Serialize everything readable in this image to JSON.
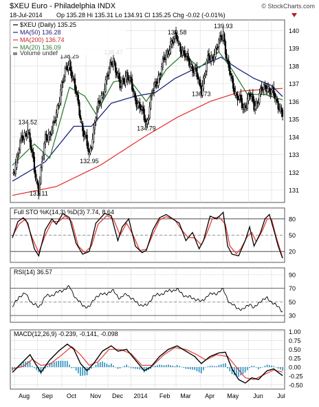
{
  "header": {
    "symbol_line": "$XEU Euro - Philadelphia INDX",
    "watermark": "© StockCharts.com",
    "date": "18-Jul-2014",
    "quote": "Op 135.28  Hi 135.31  Lo 134.91  Cl 135.25  Chg -0.02 (-0.01%)"
  },
  "legend": {
    "price": "$XEU (Daily) 135.25",
    "ma50": "MA(50) 136.28",
    "ma200": "MA(200) 136.74",
    "ma20": "MA(20) 136.09",
    "volume": "Volume undef"
  },
  "colors": {
    "price": "#000000",
    "ma50": "#1a237e",
    "ma200": "#e53935",
    "ma20": "#2e7d32",
    "sto_k": "#000000",
    "sto_d": "#e53935",
    "macd_hist": "#2a8fbd",
    "grid": "#d9d9d9",
    "panel_border": "#555555"
  },
  "x_axis": {
    "labels": [
      "Aug",
      "Sep",
      "Oct",
      "Nov",
      "Dec",
      "2014",
      "Feb",
      "Mar",
      "Apr",
      "May",
      "Jun",
      "Jul"
    ],
    "label_index": [
      2,
      23,
      45,
      67,
      87,
      108,
      130,
      149,
      171,
      192,
      215,
      236
    ]
  },
  "chart_data": [
    {
      "type": "line",
      "title": "$XEU (Daily)",
      "ylim": [
        130.3,
        140.6
      ],
      "y_ticks": [
        131,
        132,
        133,
        134,
        135,
        136,
        137,
        138,
        139,
        140
      ],
      "anchors": [
        [
          0,
          131.7
        ],
        [
          6,
          133.4
        ],
        [
          14,
          134.52
        ],
        [
          20,
          132.1
        ],
        [
          24,
          131.11
        ],
        [
          30,
          133.9
        ],
        [
          38,
          134.6
        ],
        [
          45,
          137.0
        ],
        [
          52,
          138.25
        ],
        [
          58,
          136.4
        ],
        [
          64,
          134.5
        ],
        [
          70,
          132.95
        ],
        [
          76,
          135.2
        ],
        [
          84,
          136.9
        ],
        [
          92,
          138.47
        ],
        [
          98,
          136.8
        ],
        [
          104,
          137.6
        ],
        [
          112,
          136.2
        ],
        [
          118,
          135.4
        ],
        [
          122,
          134.79
        ],
        [
          128,
          136.6
        ],
        [
          136,
          137.9
        ],
        [
          144,
          139.3
        ],
        [
          150,
          139.58
        ],
        [
          156,
          138.6
        ],
        [
          162,
          138.2
        ],
        [
          168,
          137.4
        ],
        [
          172,
          136.73
        ],
        [
          178,
          138.3
        ],
        [
          186,
          138.9
        ],
        [
          192,
          139.93
        ],
        [
          196,
          138.0
        ],
        [
          200,
          137.1
        ],
        [
          204,
          136.4
        ],
        [
          210,
          135.6
        ],
        [
          216,
          136.4
        ],
        [
          220,
          135.7
        ],
        [
          226,
          136.5
        ],
        [
          232,
          136.9
        ],
        [
          238,
          136.3
        ],
        [
          242,
          135.9
        ],
        [
          246,
          135.25
        ]
      ],
      "ma20_anchors": [
        [
          0,
          132.4
        ],
        [
          20,
          133.6
        ],
        [
          34,
          132.8
        ],
        [
          52,
          136.8
        ],
        [
          66,
          136.3
        ],
        [
          76,
          135.3
        ],
        [
          92,
          137.1
        ],
        [
          106,
          137.3
        ],
        [
          122,
          136.0
        ],
        [
          140,
          137.8
        ],
        [
          156,
          138.7
        ],
        [
          170,
          137.9
        ],
        [
          188,
          138.8
        ],
        [
          200,
          137.8
        ],
        [
          214,
          136.4
        ],
        [
          230,
          136.4
        ],
        [
          246,
          136.09
        ]
      ],
      "ma50_anchors": [
        [
          0,
          131.5
        ],
        [
          30,
          132.6
        ],
        [
          56,
          134.6
        ],
        [
          72,
          134.6
        ],
        [
          90,
          135.9
        ],
        [
          112,
          136.3
        ],
        [
          130,
          136.5
        ],
        [
          148,
          137.3
        ],
        [
          168,
          137.9
        ],
        [
          190,
          138.5
        ],
        [
          204,
          137.9
        ],
        [
          220,
          137.3
        ],
        [
          236,
          136.9
        ],
        [
          246,
          136.28
        ]
      ],
      "ma200_anchors": [
        [
          0,
          130.7
        ],
        [
          40,
          131.2
        ],
        [
          80,
          132.4
        ],
        [
          120,
          134.0
        ],
        [
          150,
          135.1
        ],
        [
          180,
          136.0
        ],
        [
          210,
          136.6
        ],
        [
          246,
          136.74
        ]
      ],
      "annotations": [
        {
          "label": "134.52",
          "x": 14,
          "y": 134.52,
          "pos": "above"
        },
        {
          "label": "131.11",
          "x": 24,
          "y": 131.11,
          "pos": "below"
        },
        {
          "label": "138.25",
          "x": 52,
          "y": 138.25,
          "pos": "above"
        },
        {
          "label": "132.95",
          "x": 70,
          "y": 132.95,
          "pos": "below"
        },
        {
          "label": "138.47",
          "x": 92,
          "y": 138.47,
          "pos": "above"
        },
        {
          "label": "134.79",
          "x": 122,
          "y": 134.79,
          "pos": "below"
        },
        {
          "label": "139.58",
          "x": 150,
          "y": 139.58,
          "pos": "above"
        },
        {
          "label": "136.73",
          "x": 172,
          "y": 136.73,
          "pos": "below"
        },
        {
          "label": "139.93",
          "x": 192,
          "y": 139.93,
          "pos": "above"
        }
      ]
    },
    {
      "type": "line",
      "title": "Full STO %K(14,3) %D(3) 7.74, 8.64",
      "ylim": [
        0,
        100
      ],
      "y_ticks": [
        20,
        50,
        80
      ],
      "k_anchors": [
        [
          0,
          45
        ],
        [
          5,
          75
        ],
        [
          10,
          82
        ],
        [
          14,
          72
        ],
        [
          20,
          25
        ],
        [
          24,
          12
        ],
        [
          30,
          60
        ],
        [
          36,
          80
        ],
        [
          40,
          70
        ],
        [
          46,
          90
        ],
        [
          52,
          82
        ],
        [
          58,
          35
        ],
        [
          64,
          15
        ],
        [
          70,
          20
        ],
        [
          76,
          72
        ],
        [
          84,
          90
        ],
        [
          90,
          86
        ],
        [
          96,
          40
        ],
        [
          100,
          65
        ],
        [
          106,
          80
        ],
        [
          112,
          30
        ],
        [
          118,
          18
        ],
        [
          122,
          22
        ],
        [
          128,
          60
        ],
        [
          134,
          82
        ],
        [
          140,
          88
        ],
        [
          146,
          80
        ],
        [
          152,
          72
        ],
        [
          158,
          40
        ],
        [
          164,
          55
        ],
        [
          170,
          25
        ],
        [
          174,
          40
        ],
        [
          180,
          85
        ],
        [
          186,
          80
        ],
        [
          192,
          92
        ],
        [
          196,
          30
        ],
        [
          200,
          15
        ],
        [
          206,
          12
        ],
        [
          212,
          40
        ],
        [
          216,
          65
        ],
        [
          220,
          30
        ],
        [
          226,
          55
        ],
        [
          230,
          80
        ],
        [
          234,
          88
        ],
        [
          238,
          60
        ],
        [
          242,
          30
        ],
        [
          246,
          7.74
        ]
      ],
      "d_anchors": [
        [
          0,
          48
        ],
        [
          6,
          70
        ],
        [
          12,
          80
        ],
        [
          18,
          45
        ],
        [
          24,
          18
        ],
        [
          30,
          50
        ],
        [
          36,
          75
        ],
        [
          42,
          75
        ],
        [
          48,
          85
        ],
        [
          54,
          75
        ],
        [
          60,
          30
        ],
        [
          66,
          18
        ],
        [
          72,
          30
        ],
        [
          78,
          70
        ],
        [
          86,
          86
        ],
        [
          92,
          80
        ],
        [
          98,
          50
        ],
        [
          104,
          72
        ],
        [
          110,
          50
        ],
        [
          116,
          22
        ],
        [
          122,
          24
        ],
        [
          128,
          52
        ],
        [
          134,
          78
        ],
        [
          140,
          84
        ],
        [
          148,
          78
        ],
        [
          154,
          60
        ],
        [
          160,
          46
        ],
        [
          166,
          45
        ],
        [
          172,
          32
        ],
        [
          176,
          48
        ],
        [
          182,
          80
        ],
        [
          188,
          84
        ],
        [
          194,
          70
        ],
        [
          198,
          30
        ],
        [
          204,
          16
        ],
        [
          208,
          25
        ],
        [
          214,
          48
        ],
        [
          218,
          55
        ],
        [
          222,
          38
        ],
        [
          228,
          60
        ],
        [
          232,
          80
        ],
        [
          236,
          80
        ],
        [
          240,
          48
        ],
        [
          244,
          22
        ],
        [
          246,
          8.64
        ]
      ]
    },
    {
      "type": "line",
      "title": "RSI(14) 36.57",
      "ylim": [
        20,
        100
      ],
      "y_ticks": [
        30,
        50,
        70,
        90
      ],
      "rsi_anchors": [
        [
          0,
          42
        ],
        [
          6,
          58
        ],
        [
          12,
          62
        ],
        [
          18,
          48
        ],
        [
          24,
          42
        ],
        [
          30,
          58
        ],
        [
          36,
          60
        ],
        [
          44,
          66
        ],
        [
          52,
          72
        ],
        [
          58,
          55
        ],
        [
          64,
          45
        ],
        [
          70,
          42
        ],
        [
          76,
          58
        ],
        [
          84,
          62
        ],
        [
          92,
          66
        ],
        [
          98,
          55
        ],
        [
          104,
          62
        ],
        [
          112,
          50
        ],
        [
          118,
          45
        ],
        [
          122,
          44
        ],
        [
          128,
          58
        ],
        [
          136,
          62
        ],
        [
          144,
          67
        ],
        [
          150,
          68
        ],
        [
          158,
          58
        ],
        [
          166,
          55
        ],
        [
          172,
          50
        ],
        [
          178,
          60
        ],
        [
          186,
          63
        ],
        [
          192,
          68
        ],
        [
          198,
          48
        ],
        [
          204,
          42
        ],
        [
          210,
          38
        ],
        [
          216,
          48
        ],
        [
          220,
          40
        ],
        [
          226,
          52
        ],
        [
          232,
          55
        ],
        [
          238,
          48
        ],
        [
          242,
          42
        ],
        [
          246,
          36.57
        ]
      ]
    },
    {
      "type": "line",
      "title": "MACD(12,26,9) -0.239, -0.141, -0.098",
      "ylim": [
        -0.62,
        1.05
      ],
      "y_ticks": [
        -0.5,
        -0.25,
        0.0,
        0.25,
        0.5,
        0.75,
        1.0
      ],
      "macd_anchors": [
        [
          0,
          -0.15
        ],
        [
          8,
          0.1
        ],
        [
          16,
          0.35
        ],
        [
          22,
          0.05
        ],
        [
          26,
          -0.15
        ],
        [
          34,
          0.2
        ],
        [
          42,
          0.45
        ],
        [
          50,
          0.65
        ],
        [
          56,
          0.5
        ],
        [
          62,
          0.1
        ],
        [
          68,
          -0.1
        ],
        [
          74,
          0.1
        ],
        [
          82,
          0.45
        ],
        [
          90,
          0.6
        ],
        [
          96,
          0.45
        ],
        [
          104,
          0.5
        ],
        [
          112,
          0.2
        ],
        [
          120,
          -0.1
        ],
        [
          126,
          0.0
        ],
        [
          134,
          0.3
        ],
        [
          142,
          0.5
        ],
        [
          150,
          0.6
        ],
        [
          158,
          0.45
        ],
        [
          166,
          0.3
        ],
        [
          172,
          0.1
        ],
        [
          180,
          0.3
        ],
        [
          188,
          0.4
        ],
        [
          194,
          0.42
        ],
        [
          200,
          -0.05
        ],
        [
          206,
          -0.35
        ],
        [
          212,
          -0.45
        ],
        [
          218,
          -0.3
        ],
        [
          224,
          -0.35
        ],
        [
          232,
          -0.1
        ],
        [
          238,
          -0.05
        ],
        [
          242,
          -0.15
        ],
        [
          246,
          -0.239
        ]
      ],
      "signal_anchors": [
        [
          0,
          -0.05
        ],
        [
          10,
          0.02
        ],
        [
          18,
          0.22
        ],
        [
          26,
          0.05
        ],
        [
          34,
          0.08
        ],
        [
          44,
          0.32
        ],
        [
          54,
          0.58
        ],
        [
          62,
          0.35
        ],
        [
          70,
          0.05
        ],
        [
          78,
          0.15
        ],
        [
          88,
          0.5
        ],
        [
          98,
          0.5
        ],
        [
          108,
          0.38
        ],
        [
          118,
          0.05
        ],
        [
          128,
          0.05
        ],
        [
          138,
          0.35
        ],
        [
          148,
          0.55
        ],
        [
          158,
          0.5
        ],
        [
          168,
          0.35
        ],
        [
          176,
          0.2
        ],
        [
          186,
          0.35
        ],
        [
          196,
          0.3
        ],
        [
          204,
          0.0
        ],
        [
          212,
          -0.3
        ],
        [
          220,
          -0.35
        ],
        [
          230,
          -0.2
        ],
        [
          238,
          -0.08
        ],
        [
          246,
          -0.141
        ]
      ]
    }
  ]
}
